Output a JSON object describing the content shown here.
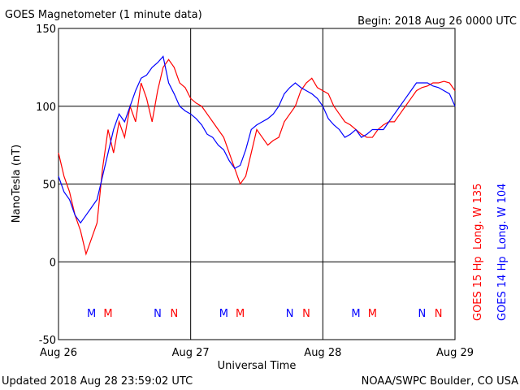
{
  "chart_data": {
    "type": "line",
    "title": "GOES Magnetometer (1 minute data)",
    "subtitle": "Begin:  2018 Aug 26 0000 UTC",
    "xlabel": "Universal Time",
    "ylabel": "NanoTesla (nT)",
    "footer_left": "Updated 2018 Aug 28 23:59:02 UTC",
    "footer_right": "NOAA/SWPC Boulder, CO USA",
    "xlim": [
      0,
      72
    ],
    "xticks": [
      {
        "value": 0,
        "label": "Aug 26"
      },
      {
        "value": 24,
        "label": "Aug 27"
      },
      {
        "value": 48,
        "label": "Aug 28"
      },
      {
        "value": 72,
        "label": "Aug 29"
      }
    ],
    "ylim": [
      -50,
      150
    ],
    "yticks": [
      150,
      100,
      50,
      0,
      -50
    ],
    "grid": true,
    "x": [
      0,
      1,
      2,
      3,
      4,
      5,
      6,
      7,
      8,
      9,
      10,
      11,
      12,
      13,
      14,
      15,
      16,
      17,
      18,
      19,
      20,
      21,
      22,
      23,
      24,
      25,
      26,
      27,
      28,
      29,
      30,
      31,
      32,
      33,
      34,
      35,
      36,
      37,
      38,
      39,
      40,
      41,
      42,
      43,
      44,
      45,
      46,
      47,
      48,
      49,
      50,
      51,
      52,
      53,
      54,
      55,
      56,
      57,
      58,
      59,
      60,
      61,
      62,
      63,
      64,
      65,
      66,
      67,
      68,
      69,
      70,
      71,
      72
    ],
    "series": [
      {
        "name": "GOES 15 Hp  Long. W 135",
        "color": "#ff0000",
        "values": [
          70,
          55,
          45,
          30,
          20,
          5,
          15,
          25,
          60,
          85,
          70,
          90,
          80,
          100,
          90,
          115,
          105,
          90,
          110,
          125,
          130,
          125,
          115,
          112,
          105,
          102,
          100,
          95,
          90,
          85,
          80,
          70,
          60,
          50,
          55,
          70,
          85,
          80,
          75,
          78,
          80,
          90,
          95,
          100,
          110,
          115,
          118,
          112,
          110,
          108,
          100,
          95,
          90,
          88,
          85,
          82,
          80,
          80,
          85,
          88,
          90,
          90,
          95,
          100,
          105,
          110,
          112,
          113,
          115,
          115,
          116,
          115,
          110
        ]
      },
      {
        "name": "GOES 14 Hp  Long. W 104",
        "color": "#0000ff",
        "values": [
          55,
          45,
          40,
          30,
          25,
          30,
          35,
          40,
          55,
          70,
          85,
          95,
          90,
          100,
          110,
          118,
          120,
          125,
          128,
          132,
          115,
          108,
          100,
          97,
          95,
          92,
          88,
          82,
          80,
          75,
          72,
          65,
          60,
          62,
          72,
          85,
          88,
          90,
          92,
          95,
          100,
          108,
          112,
          115,
          112,
          110,
          108,
          105,
          100,
          92,
          88,
          85,
          80,
          82,
          85,
          80,
          82,
          85,
          85,
          85,
          90,
          95,
          100,
          105,
          110,
          115,
          115,
          115,
          113,
          112,
          110,
          108,
          100
        ]
      }
    ],
    "markers": [
      {
        "label": "M",
        "x": 6,
        "color": "#0000ff"
      },
      {
        "label": "M",
        "x": 9,
        "color": "#ff0000"
      },
      {
        "label": "N",
        "x": 18,
        "color": "#0000ff"
      },
      {
        "label": "N",
        "x": 21,
        "color": "#ff0000"
      },
      {
        "label": "M",
        "x": 30,
        "color": "#0000ff"
      },
      {
        "label": "M",
        "x": 33,
        "color": "#ff0000"
      },
      {
        "label": "N",
        "x": 42,
        "color": "#0000ff"
      },
      {
        "label": "N",
        "x": 45,
        "color": "#ff0000"
      },
      {
        "label": "M",
        "x": 54,
        "color": "#0000ff"
      },
      {
        "label": "M",
        "x": 57,
        "color": "#ff0000"
      },
      {
        "label": "N",
        "x": 66,
        "color": "#0000ff"
      },
      {
        "label": "N",
        "x": 69,
        "color": "#ff0000"
      }
    ]
  }
}
